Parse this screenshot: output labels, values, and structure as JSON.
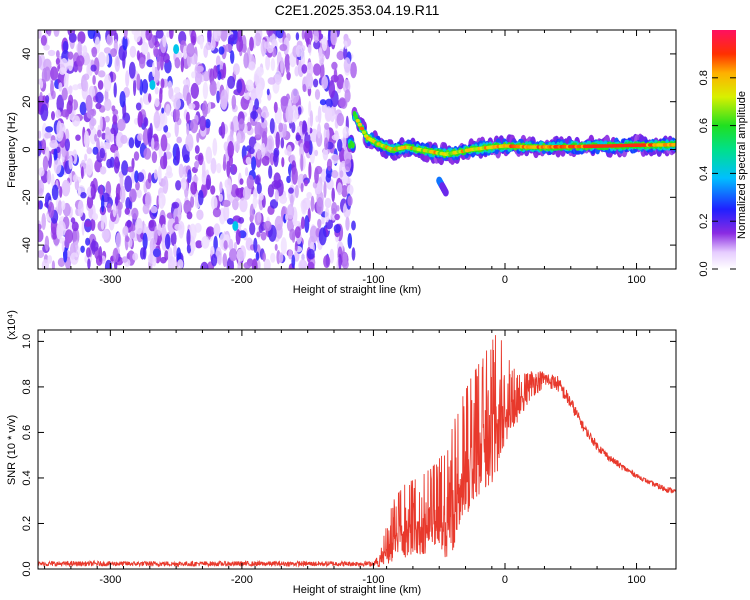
{
  "title": "C2E1.2025.353.04.19.R11",
  "chart_data": [
    {
      "type": "heatmap",
      "xlabel": "Height of straight line (km)",
      "ylabel": "Frequency (Hz)",
      "xlim": [
        -355,
        130
      ],
      "ylim": [
        -50,
        50
      ],
      "xticks": [
        -300,
        -200,
        -100,
        0,
        100
      ],
      "yticks": [
        -40,
        -20,
        0,
        20,
        40
      ],
      "xtick_labels": [
        "-300",
        "-200",
        "-100",
        "0",
        "100"
      ],
      "ytick_labels": [
        "-40",
        "-20",
        "0",
        "20",
        "40"
      ],
      "colorbar": {
        "label": "Normalized spectral amplitude",
        "range": [
          0,
          1
        ],
        "ticks": [
          0.0,
          0.2,
          0.4,
          0.6,
          0.8
        ],
        "tick_labels": [
          "0.0",
          "0.2",
          "0.4",
          "0.6",
          "0.8"
        ]
      },
      "features": [
        {
          "name": "noise-region",
          "x_range": [
            -355,
            -115
          ],
          "y_range": [
            -50,
            50
          ],
          "amplitude": 0.15
        },
        {
          "name": "signal-track",
          "points": [
            [
              -115,
              15
            ],
            [
              -105,
              5
            ],
            [
              -95,
              2
            ],
            [
              -85,
              0
            ],
            [
              -75,
              1
            ],
            [
              -65,
              0
            ],
            [
              -55,
              -1
            ],
            [
              -45,
              -2
            ],
            [
              -35,
              -1
            ],
            [
              -25,
              0
            ],
            [
              -10,
              1
            ],
            [
              0,
              1.5
            ],
            [
              20,
              1
            ],
            [
              50,
              1.2
            ],
            [
              80,
              1.5
            ],
            [
              100,
              1.8
            ],
            [
              130,
              2
            ]
          ],
          "amplitude_peak": 0.95
        },
        {
          "name": "secondary-branch",
          "points": [
            [
              -50,
              -13
            ],
            [
              -45,
              -18
            ]
          ],
          "amplitude_peak": 0.4
        }
      ]
    },
    {
      "type": "line",
      "xlabel": "Height of straight line (km)",
      "ylabel": "SNR (10 * v/v)",
      "scale_label": "(x10⁴)",
      "xlim": [
        -355,
        130
      ],
      "ylim": [
        0,
        1.05
      ],
      "xticks": [
        -300,
        -200,
        -100,
        0,
        100
      ],
      "yticks": [
        0.0,
        0.2,
        0.4,
        0.6,
        0.8,
        1.0
      ],
      "xtick_labels": [
        "-300",
        "-200",
        "-100",
        "0",
        "100"
      ],
      "ytick_labels": [
        "0.0",
        "0.2",
        "0.4",
        "0.6",
        "0.8",
        "1.0"
      ],
      "series": [
        {
          "name": "SNR",
          "color": "#e8392c",
          "envelope_x": [
            -355,
            -200,
            -100,
            -95,
            -85,
            -75,
            -65,
            -55,
            -45,
            -35,
            -25,
            -15,
            -5,
            0,
            10,
            20,
            30,
            40,
            50,
            60,
            70,
            80,
            90,
            100,
            110,
            120,
            130
          ],
          "envelope_hi": [
            0.03,
            0.03,
            0.03,
            0.08,
            0.3,
            0.38,
            0.4,
            0.45,
            0.52,
            0.72,
            0.85,
            0.95,
            1.05,
            0.95,
            0.85,
            0.88,
            0.87,
            0.85,
            0.76,
            0.64,
            0.56,
            0.5,
            0.46,
            0.42,
            0.39,
            0.37,
            0.35
          ],
          "envelope_lo": [
            0.01,
            0.01,
            0.01,
            0.01,
            0.03,
            0.05,
            0.05,
            0.08,
            0.05,
            0.1,
            0.3,
            0.35,
            0.4,
            0.55,
            0.65,
            0.75,
            0.8,
            0.78,
            0.7,
            0.6,
            0.52,
            0.47,
            0.43,
            0.4,
            0.37,
            0.34,
            0.33
          ]
        }
      ]
    }
  ]
}
